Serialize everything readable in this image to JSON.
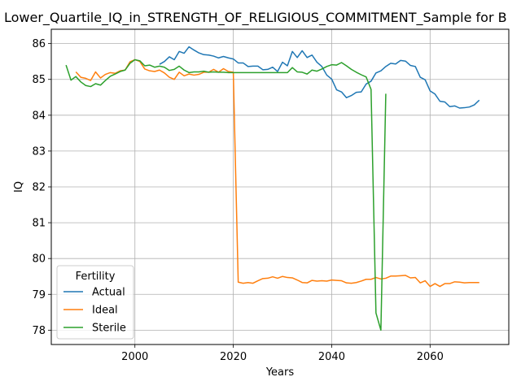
{
  "chart_data": {
    "type": "line",
    "title": "Lower_Quartile_IQ_in_STRENGTH_OF_RELIGIOUS_COMMITMENT_Sample for B",
    "xlabel": "Years",
    "ylabel": "IQ",
    "xlim": [
      1983,
      2076
    ],
    "ylim": [
      77.6,
      86.4
    ],
    "xticks": [
      2000,
      2020,
      2040,
      2060
    ],
    "yticks": [
      78,
      79,
      80,
      81,
      82,
      83,
      84,
      85,
      86
    ],
    "grid": true,
    "legend": {
      "title": "Fertility",
      "placement": "lower-left"
    },
    "series": [
      {
        "name": "Actual",
        "color": "#1f77b4",
        "x": [
          2005,
          2006,
          2007,
          2008,
          2009,
          2010,
          2011,
          2012,
          2013,
          2014,
          2015,
          2016,
          2017,
          2018,
          2019,
          2020,
          2021,
          2022,
          2023,
          2024,
          2025,
          2026,
          2027,
          2028,
          2029,
          2030,
          2031,
          2032,
          2033,
          2034,
          2035,
          2036,
          2037,
          2038,
          2039,
          2040,
          2041,
          2042,
          2043,
          2044,
          2045,
          2046,
          2047,
          2048,
          2049,
          2050,
          2051,
          2052,
          2053,
          2054,
          2055,
          2056,
          2057,
          2058,
          2059,
          2060,
          2061,
          2062,
          2063,
          2064,
          2065,
          2066,
          2067,
          2068,
          2069,
          2070
        ],
        "y": [
          85.42,
          85.5,
          85.63,
          85.55,
          85.78,
          85.73,
          85.91,
          85.82,
          85.74,
          85.69,
          85.68,
          85.65,
          85.6,
          85.64,
          85.6,
          85.57,
          85.46,
          85.46,
          85.36,
          85.37,
          85.37,
          85.27,
          85.28,
          85.34,
          85.22,
          85.48,
          85.38,
          85.78,
          85.61,
          85.8,
          85.61,
          85.68,
          85.48,
          85.36,
          85.12,
          85.01,
          84.71,
          84.65,
          84.49,
          84.55,
          84.64,
          84.65,
          84.87,
          84.95,
          85.18,
          85.24,
          85.36,
          85.45,
          85.43,
          85.53,
          85.51,
          85.39,
          85.36,
          85.06,
          84.99,
          84.68,
          84.59,
          84.39,
          84.37,
          84.24,
          84.26,
          84.2,
          84.21,
          84.23,
          84.29,
          84.42
        ]
      },
      {
        "name": "Ideal",
        "color": "#ff7f0e",
        "x": [
          1988,
          1989,
          1990,
          1991,
          1992,
          1993,
          1994,
          1995,
          1996,
          1997,
          1998,
          1999,
          2000,
          2001,
          2002,
          2003,
          2004,
          2005,
          2006,
          2007,
          2008,
          2009,
          2010,
          2011,
          2012,
          2013,
          2014,
          2015,
          2016,
          2017,
          2018,
          2019,
          2020,
          2021,
          2022,
          2023,
          2024,
          2025,
          2026,
          2027,
          2028,
          2029,
          2030,
          2031,
          2032,
          2033,
          2034,
          2035,
          2036,
          2037,
          2038,
          2039,
          2040,
          2041,
          2042,
          2043,
          2044,
          2045,
          2046,
          2047,
          2048,
          2049,
          2050,
          2051,
          2052,
          2053,
          2054,
          2055,
          2056,
          2057,
          2058,
          2059,
          2060,
          2061,
          2062,
          2063,
          2064,
          2065,
          2066,
          2067,
          2068,
          2069,
          2070
        ],
        "y": [
          85.21,
          85.06,
          85.03,
          84.97,
          85.21,
          85.04,
          85.14,
          85.19,
          85.17,
          85.24,
          85.26,
          85.49,
          85.55,
          85.5,
          85.29,
          85.24,
          85.22,
          85.26,
          85.18,
          85.06,
          85.0,
          85.2,
          85.1,
          85.15,
          85.12,
          85.14,
          85.2,
          85.2,
          85.28,
          85.2,
          85.3,
          85.22,
          85.2,
          79.34,
          79.31,
          79.33,
          79.31,
          79.38,
          79.44,
          79.45,
          79.49,
          79.45,
          79.5,
          79.47,
          79.46,
          79.4,
          79.33,
          79.32,
          79.39,
          79.37,
          79.38,
          79.37,
          79.4,
          79.39,
          79.38,
          79.32,
          79.31,
          79.33,
          79.37,
          79.42,
          79.42,
          79.47,
          79.43,
          79.45,
          79.51,
          79.51,
          79.52,
          79.53,
          79.46,
          79.47,
          79.32,
          79.38,
          79.22,
          79.3,
          79.22,
          79.3,
          79.3,
          79.35,
          79.34,
          79.32,
          79.33,
          79.33,
          79.33
        ]
      },
      {
        "name": "Sterile",
        "color": "#2ca02c",
        "x": [
          1986,
          1987,
          1988,
          1989,
          1990,
          1991,
          1992,
          1993,
          1994,
          1995,
          1996,
          1997,
          1998,
          1999,
          2000,
          2001,
          2002,
          2003,
          2004,
          2005,
          2006,
          2007,
          2008,
          2009,
          2010,
          2011,
          2012,
          2013,
          2014,
          2015,
          2016,
          2017,
          2018,
          2019,
          2020,
          2021,
          2022,
          2023,
          2024,
          2025,
          2026,
          2027,
          2028,
          2029,
          2030,
          2031,
          2032,
          2033,
          2034,
          2035,
          2036,
          2037,
          2038,
          2039,
          2040,
          2041,
          2042,
          2043,
          2044,
          2045,
          2046,
          2047,
          2048,
          2049,
          2050,
          2051
        ],
        "y": [
          85.4,
          84.98,
          85.08,
          84.93,
          84.83,
          84.8,
          84.88,
          84.84,
          84.97,
          85.09,
          85.15,
          85.22,
          85.26,
          85.45,
          85.55,
          85.52,
          85.38,
          85.4,
          85.34,
          85.37,
          85.34,
          85.25,
          85.28,
          85.37,
          85.26,
          85.19,
          85.21,
          85.21,
          85.23,
          85.2,
          85.21,
          85.2,
          85.2,
          85.19,
          85.19,
          85.19,
          85.19,
          85.19,
          85.19,
          85.19,
          85.19,
          85.19,
          85.19,
          85.19,
          85.19,
          85.19,
          85.33,
          85.21,
          85.2,
          85.15,
          85.26,
          85.23,
          85.29,
          85.36,
          85.41,
          85.4,
          85.47,
          85.38,
          85.28,
          85.2,
          85.13,
          85.07,
          84.72,
          78.48,
          78.0,
          84.6
        ]
      }
    ]
  }
}
